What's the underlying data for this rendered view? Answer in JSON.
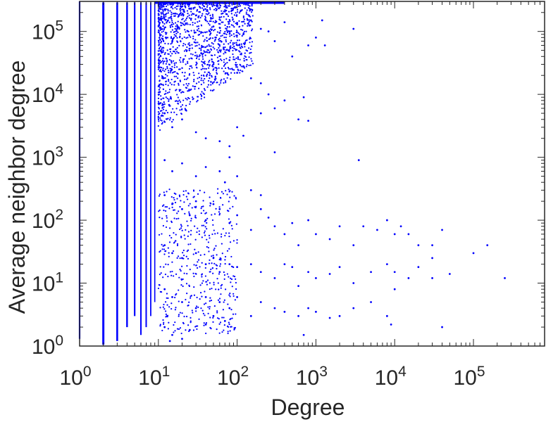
{
  "chart_data": {
    "type": "scatter",
    "title": "",
    "xlabel": "Degree",
    "ylabel": "Average neighbor degree",
    "x_scale": "log",
    "y_scale": "log",
    "xlim": [
      1,
      800000
    ],
    "ylim": [
      1,
      300000
    ],
    "grid": false,
    "legend": "none",
    "marker_color": "#0000ff",
    "axis_color": "#262626",
    "xtick_base": "10",
    "xtick_exponents": [
      "0",
      "1",
      "2",
      "3",
      "4",
      "5"
    ],
    "ytick_base": "10",
    "ytick_exponents": [
      "0",
      "1",
      "2",
      "3",
      "4",
      "5"
    ],
    "series": [
      {
        "points": [
          [
            20,
            250000
          ],
          [
            25,
            230000
          ],
          [
            30,
            180000
          ],
          [
            40,
            150000
          ],
          [
            50,
            120000
          ],
          [
            60,
            95000
          ],
          [
            80,
            100000
          ],
          [
            100,
            130000
          ],
          [
            120,
            90000
          ],
          [
            150,
            150000
          ],
          [
            200,
            110000
          ],
          [
            250,
            100000
          ],
          [
            300,
            70000
          ],
          [
            400,
            140000
          ],
          [
            500,
            40000
          ],
          [
            800,
            60000
          ],
          [
            1000,
            80000
          ],
          [
            1200,
            150000
          ],
          [
            1300,
            60000
          ],
          [
            3000,
            110000
          ],
          [
            15,
            70000
          ],
          [
            25,
            60000
          ],
          [
            35,
            45000
          ],
          [
            50,
            30000
          ],
          [
            60,
            50000
          ],
          [
            80,
            35000
          ],
          [
            100,
            22000
          ],
          [
            120,
            28000
          ],
          [
            150,
            18000
          ],
          [
            200,
            15000
          ],
          [
            250,
            10000
          ],
          [
            300,
            6000
          ],
          [
            400,
            8000
          ],
          [
            600,
            4000
          ],
          [
            700,
            9000
          ],
          [
            800,
            3800
          ],
          [
            12,
            5000
          ],
          [
            15,
            3000
          ],
          [
            20,
            4000
          ],
          [
            30,
            2500
          ],
          [
            40,
            2000
          ],
          [
            60,
            1800
          ],
          [
            80,
            1500
          ],
          [
            100,
            3000
          ],
          [
            120,
            2200
          ],
          [
            200,
            5000
          ],
          [
            300,
            1200
          ],
          [
            3500,
            900
          ],
          [
            12,
            900
          ],
          [
            15,
            600
          ],
          [
            20,
            800
          ],
          [
            30,
            500
          ],
          [
            40,
            700
          ],
          [
            60,
            600
          ],
          [
            70,
            400
          ],
          [
            80,
            1000
          ],
          [
            100,
            500
          ],
          [
            150,
            300
          ],
          [
            200,
            250
          ],
          [
            12,
            250
          ],
          [
            15,
            180
          ],
          [
            20,
            150
          ],
          [
            25,
            120
          ],
          [
            30,
            200
          ],
          [
            40,
            100
          ],
          [
            50,
            180
          ],
          [
            60,
            150
          ],
          [
            80,
            90
          ],
          [
            100,
            120
          ],
          [
            150,
            70
          ],
          [
            200,
            150
          ],
          [
            250,
            110
          ],
          [
            300,
            80
          ],
          [
            400,
            60
          ],
          [
            500,
            90
          ],
          [
            600,
            40
          ],
          [
            800,
            100
          ],
          [
            1000,
            60
          ],
          [
            1500,
            50
          ],
          [
            2000,
            80
          ],
          [
            3000,
            40
          ],
          [
            4000,
            80
          ],
          [
            6000,
            70
          ],
          [
            8000,
            100
          ],
          [
            10000,
            60
          ],
          [
            12000,
            80
          ],
          [
            15000,
            60
          ],
          [
            20000,
            40
          ],
          [
            30000,
            40
          ],
          [
            40000,
            70
          ],
          [
            12,
            40
          ],
          [
            15,
            30
          ],
          [
            20,
            25
          ],
          [
            30,
            30
          ],
          [
            40,
            20
          ],
          [
            50,
            25
          ],
          [
            60,
            15
          ],
          [
            80,
            20
          ],
          [
            100,
            18
          ],
          [
            150,
            20
          ],
          [
            200,
            15
          ],
          [
            300,
            12
          ],
          [
            400,
            20
          ],
          [
            500,
            18
          ],
          [
            600,
            9
          ],
          [
            800,
            15
          ],
          [
            1000,
            12
          ],
          [
            1500,
            14
          ],
          [
            2000,
            18
          ],
          [
            3000,
            10
          ],
          [
            5000,
            15
          ],
          [
            8000,
            20
          ],
          [
            10000,
            15
          ],
          [
            15000,
            12
          ],
          [
            20000,
            18
          ],
          [
            30000,
            25
          ],
          [
            50000,
            14
          ],
          [
            100000,
            30
          ],
          [
            150000,
            40
          ],
          [
            250000,
            12
          ],
          [
            12,
            8
          ],
          [
            15,
            6
          ],
          [
            20,
            5
          ],
          [
            30,
            4
          ],
          [
            40,
            6
          ],
          [
            50,
            3
          ],
          [
            60,
            5
          ],
          [
            80,
            4
          ],
          [
            100,
            6
          ],
          [
            150,
            3
          ],
          [
            200,
            5
          ],
          [
            300,
            4
          ],
          [
            400,
            3.5
          ],
          [
            600,
            3
          ],
          [
            800,
            4
          ],
          [
            1000,
            3.5
          ],
          [
            1500,
            2.8
          ],
          [
            2000,
            3
          ],
          [
            3000,
            4
          ],
          [
            5000,
            5
          ],
          [
            8000,
            3
          ],
          [
            10000,
            8
          ],
          [
            30000,
            12
          ],
          [
            40000,
            2
          ],
          [
            12,
            2
          ],
          [
            15,
            1.5
          ],
          [
            25,
            1.8
          ],
          [
            40,
            2.2
          ],
          [
            70,
            2.5
          ],
          [
            700,
            1.5
          ],
          [
            9000,
            2.2
          ],
          [
            14,
            1.2
          ],
          [
            20,
            1.3
          ]
        ]
      }
    ]
  }
}
